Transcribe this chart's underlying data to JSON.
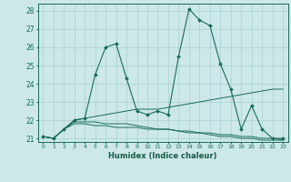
{
  "xlabel": "Humidex (Indice chaleur)",
  "background_color": "#cce8e8",
  "grid_color": "#aad0d0",
  "line_color": "#1a6b5a",
  "xlim": [
    -0.5,
    23.5
  ],
  "ylim": [
    20.8,
    28.4
  ],
  "yticks": [
    21,
    22,
    23,
    24,
    25,
    26,
    27,
    28
  ],
  "xticks": [
    0,
    1,
    2,
    3,
    4,
    5,
    6,
    7,
    8,
    9,
    10,
    11,
    12,
    13,
    14,
    15,
    16,
    17,
    18,
    19,
    20,
    21,
    22,
    23
  ],
  "lines": [
    {
      "x": [
        0,
        1,
        2,
        3,
        4,
        5,
        6,
        7,
        8,
        9,
        10,
        11,
        12,
        13,
        14,
        15,
        16,
        17,
        18,
        19,
        20,
        21,
        22,
        23
      ],
      "y": [
        21.1,
        21.0,
        21.5,
        22.0,
        22.1,
        24.5,
        26.0,
        26.2,
        24.3,
        22.5,
        22.3,
        22.5,
        22.3,
        25.5,
        28.1,
        27.5,
        27.2,
        25.1,
        23.7,
        21.5,
        22.8,
        21.5,
        21.0,
        21.0
      ],
      "markers": true
    },
    {
      "x": [
        0,
        1,
        2,
        3,
        4,
        5,
        6,
        7,
        8,
        9,
        10,
        11,
        12,
        13,
        14,
        15,
        16,
        17,
        18,
        19,
        20,
        21,
        22,
        23
      ],
      "y": [
        21.1,
        21.0,
        21.5,
        21.8,
        21.8,
        21.7,
        21.7,
        21.6,
        21.6,
        21.6,
        21.5,
        21.5,
        21.5,
        21.4,
        21.4,
        21.3,
        21.3,
        21.2,
        21.2,
        21.1,
        21.1,
        21.0,
        21.0,
        20.9
      ],
      "markers": false
    },
    {
      "x": [
        0,
        1,
        2,
        3,
        4,
        5,
        6,
        7,
        8,
        9,
        10,
        11,
        12,
        13,
        14,
        15,
        16,
        17,
        18,
        19,
        20,
        21,
        22,
        23
      ],
      "y": [
        21.1,
        21.0,
        21.5,
        22.0,
        22.1,
        22.2,
        22.3,
        22.4,
        22.5,
        22.6,
        22.6,
        22.6,
        22.7,
        22.8,
        22.9,
        23.0,
        23.1,
        23.2,
        23.3,
        23.4,
        23.5,
        23.6,
        23.7,
        23.7
      ],
      "markers": false
    },
    {
      "x": [
        0,
        1,
        2,
        3,
        4,
        5,
        6,
        7,
        8,
        9,
        10,
        11,
        12,
        13,
        14,
        15,
        16,
        17,
        18,
        19,
        20,
        21,
        22,
        23
      ],
      "y": [
        21.1,
        21.0,
        21.5,
        21.9,
        21.9,
        21.9,
        21.8,
        21.8,
        21.8,
        21.7,
        21.6,
        21.5,
        21.5,
        21.4,
        21.3,
        21.3,
        21.2,
        21.1,
        21.1,
        21.0,
        21.0,
        20.9,
        20.9,
        20.9
      ],
      "markers": false
    }
  ]
}
